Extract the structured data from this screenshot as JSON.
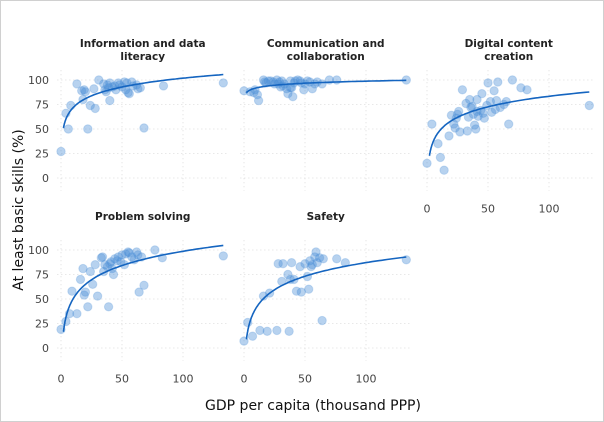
{
  "chart_data": {
    "type": "scatter",
    "layout": "facet-grid 2x3",
    "xlabel": "GDP per capita (thousand PPP)",
    "ylabel": "At least basic skills (%)",
    "xlim": [
      -3,
      137
    ],
    "ylim": [
      -13,
      110
    ],
    "xticks": [
      0,
      50,
      100
    ],
    "yticks": [
      0,
      25,
      50,
      75,
      100
    ],
    "grid": true,
    "point_color": "#4a8fd8",
    "fit_color": "#1565c0",
    "fit_type": "logarithmic",
    "panels": [
      {
        "title": [
          "Information and data",
          "literacy"
        ],
        "fit": {
          "a": 42,
          "b": 13,
          "x0": 2,
          "x1": 133
        },
        "points": [
          [
            0,
            27
          ],
          [
            4,
            66
          ],
          [
            6,
            50
          ],
          [
            8,
            74
          ],
          [
            13,
            96
          ],
          [
            17,
            89
          ],
          [
            18,
            80
          ],
          [
            19,
            90
          ],
          [
            20,
            88
          ],
          [
            22,
            50
          ],
          [
            24,
            74
          ],
          [
            27,
            91
          ],
          [
            28,
            71
          ],
          [
            31,
            100
          ],
          [
            35,
            96
          ],
          [
            36,
            90
          ],
          [
            37,
            88
          ],
          [
            38,
            95
          ],
          [
            39,
            92
          ],
          [
            40,
            79
          ],
          [
            40,
            97
          ],
          [
            42,
            93
          ],
          [
            44,
            94
          ],
          [
            45,
            90
          ],
          [
            47,
            97
          ],
          [
            48,
            95
          ],
          [
            50,
            93
          ],
          [
            52,
            98
          ],
          [
            53,
            90
          ],
          [
            54,
            97
          ],
          [
            55,
            87
          ],
          [
            56,
            86
          ],
          [
            58,
            98
          ],
          [
            59,
            94
          ],
          [
            62,
            95
          ],
          [
            63,
            91
          ],
          [
            65,
            92
          ],
          [
            68,
            51
          ],
          [
            84,
            94
          ],
          [
            133,
            97
          ]
        ]
      },
      {
        "title": [
          "Communication and",
          "collaboration"
        ],
        "fit": {
          "a": 85,
          "b": 3,
          "x0": 2,
          "x1": 133
        },
        "points": [
          [
            0,
            89
          ],
          [
            5,
            88
          ],
          [
            8,
            87
          ],
          [
            9,
            90
          ],
          [
            11,
            85
          ],
          [
            12,
            79
          ],
          [
            16,
            100
          ],
          [
            17,
            98
          ],
          [
            18,
            97
          ],
          [
            20,
            99
          ],
          [
            22,
            99
          ],
          [
            24,
            98
          ],
          [
            25,
            96
          ],
          [
            27,
            100
          ],
          [
            28,
            96
          ],
          [
            29,
            98
          ],
          [
            30,
            93
          ],
          [
            31,
            99
          ],
          [
            32,
            94
          ],
          [
            33,
            96
          ],
          [
            35,
            91
          ],
          [
            36,
            86
          ],
          [
            38,
            92
          ],
          [
            38,
            99
          ],
          [
            39,
            92
          ],
          [
            40,
            83
          ],
          [
            41,
            97
          ],
          [
            42,
            99
          ],
          [
            44,
            100
          ],
          [
            46,
            99
          ],
          [
            47,
            97
          ],
          [
            49,
            90
          ],
          [
            50,
            96
          ],
          [
            52,
            99
          ],
          [
            54,
            98
          ],
          [
            56,
            91
          ],
          [
            58,
            96
          ],
          [
            60,
            98
          ],
          [
            64,
            96
          ],
          [
            70,
            100
          ],
          [
            76,
            100
          ],
          [
            133,
            100
          ]
        ]
      },
      {
        "title": [
          "Digital content",
          "creation"
        ],
        "fit": {
          "a": 12,
          "b": 15.5,
          "x0": 2,
          "x1": 133
        },
        "points": [
          [
            0,
            15
          ],
          [
            4,
            55
          ],
          [
            9,
            35
          ],
          [
            11,
            21
          ],
          [
            14,
            8
          ],
          [
            18,
            43
          ],
          [
            20,
            64
          ],
          [
            22,
            55
          ],
          [
            23,
            51
          ],
          [
            24,
            61
          ],
          [
            25,
            65
          ],
          [
            26,
            68
          ],
          [
            27,
            47
          ],
          [
            29,
            90
          ],
          [
            32,
            76
          ],
          [
            33,
            48
          ],
          [
            34,
            62
          ],
          [
            35,
            80
          ],
          [
            36,
            72
          ],
          [
            37,
            73
          ],
          [
            38,
            65
          ],
          [
            39,
            54
          ],
          [
            40,
            50
          ],
          [
            41,
            80
          ],
          [
            41,
            68
          ],
          [
            42,
            63
          ],
          [
            44,
            69
          ],
          [
            45,
            86
          ],
          [
            46,
            66
          ],
          [
            47,
            61
          ],
          [
            49,
            74
          ],
          [
            50,
            97
          ],
          [
            52,
            78
          ],
          [
            53,
            67
          ],
          [
            55,
            89
          ],
          [
            56,
            70
          ],
          [
            57,
            79
          ],
          [
            58,
            98
          ],
          [
            60,
            72
          ],
          [
            63,
            75
          ],
          [
            65,
            78
          ],
          [
            67,
            55
          ],
          [
            70,
            100
          ],
          [
            77,
            92
          ],
          [
            82,
            90
          ],
          [
            133,
            74
          ]
        ]
      },
      {
        "title": [
          "Problem solving"
        ],
        "fit": {
          "a": 2,
          "b": 21,
          "x0": 2,
          "x1": 133
        },
        "points": [
          [
            0,
            19
          ],
          [
            4,
            27
          ],
          [
            7,
            35
          ],
          [
            9,
            58
          ],
          [
            13,
            35
          ],
          [
            16,
            70
          ],
          [
            18,
            81
          ],
          [
            19,
            54
          ],
          [
            20,
            57
          ],
          [
            22,
            42
          ],
          [
            24,
            78
          ],
          [
            26,
            65
          ],
          [
            28,
            85
          ],
          [
            30,
            53
          ],
          [
            33,
            92
          ],
          [
            34,
            93
          ],
          [
            35,
            78
          ],
          [
            36,
            85
          ],
          [
            38,
            83
          ],
          [
            39,
            42
          ],
          [
            40,
            86
          ],
          [
            41,
            88
          ],
          [
            42,
            81
          ],
          [
            43,
            75
          ],
          [
            44,
            91
          ],
          [
            46,
            89
          ],
          [
            47,
            93
          ],
          [
            49,
            88
          ],
          [
            50,
            95
          ],
          [
            52,
            85
          ],
          [
            53,
            96
          ],
          [
            55,
            98
          ],
          [
            56,
            97
          ],
          [
            58,
            93
          ],
          [
            60,
            90
          ],
          [
            62,
            98
          ],
          [
            63,
            95
          ],
          [
            64,
            57
          ],
          [
            66,
            93
          ],
          [
            68,
            64
          ],
          [
            77,
            100
          ],
          [
            83,
            92
          ],
          [
            133,
            94
          ]
        ]
      },
      {
        "title": [
          "Safety"
        ],
        "fit": {
          "a": -5,
          "b": 20,
          "x0": 2,
          "x1": 133
        },
        "points": [
          [
            0,
            7
          ],
          [
            3,
            26
          ],
          [
            7,
            12
          ],
          [
            13,
            18
          ],
          [
            16,
            53
          ],
          [
            19,
            17
          ],
          [
            21,
            56
          ],
          [
            27,
            18
          ],
          [
            28,
            86
          ],
          [
            31,
            68
          ],
          [
            32,
            86
          ],
          [
            36,
            75
          ],
          [
            37,
            17
          ],
          [
            38,
            70
          ],
          [
            39,
            87
          ],
          [
            41,
            70
          ],
          [
            43,
            58
          ],
          [
            46,
            83
          ],
          [
            47,
            57
          ],
          [
            50,
            86
          ],
          [
            52,
            73
          ],
          [
            53,
            60
          ],
          [
            54,
            89
          ],
          [
            55,
            83
          ],
          [
            56,
            85
          ],
          [
            58,
            93
          ],
          [
            59,
            98
          ],
          [
            60,
            87
          ],
          [
            62,
            92
          ],
          [
            64,
            28
          ],
          [
            65,
            91
          ],
          [
            76,
            91
          ],
          [
            83,
            87
          ],
          [
            133,
            90
          ]
        ]
      }
    ]
  }
}
